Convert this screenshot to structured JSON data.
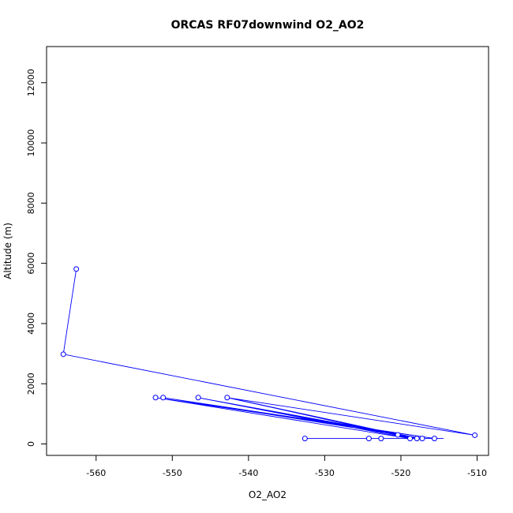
{
  "chart_data": {
    "type": "line",
    "title": "ORCAS RF07downwind O2_AO2",
    "xlabel": "O2_AO2",
    "ylabel": "Altitude (m)",
    "xlim": [
      -566.5,
      -508.5
    ],
    "ylim": [
      -380,
      13200
    ],
    "x_ticks": [
      -560,
      -550,
      -540,
      -530,
      -520,
      -510
    ],
    "y_ticks": [
      0,
      2000,
      4000,
      6000,
      8000,
      10000,
      12000
    ],
    "grid": false,
    "legend": "none",
    "series_color": "#0000ff",
    "points": [
      {
        "x": -562.6,
        "y": 5810
      },
      {
        "x": -564.3,
        "y": 2980
      },
      {
        "x": -510.3,
        "y": 290
      },
      {
        "x": -542.8,
        "y": 1540
      },
      {
        "x": -520.4,
        "y": 300
      },
      {
        "x": -546.6,
        "y": 1540
      },
      {
        "x": -518.8,
        "y": 180
      },
      {
        "x": -552.2,
        "y": 1540
      },
      {
        "x": -515.6,
        "y": 180
      },
      {
        "x": -551.2,
        "y": 1540
      },
      {
        "x": -517.2,
        "y": 180
      },
      {
        "x": -545.8,
        "y": 1500
      },
      {
        "x": -517.9,
        "y": 180
      },
      {
        "x": -542.0,
        "y": 1500
      },
      {
        "x": -518.6,
        "y": 180
      },
      {
        "x": -522.6,
        "y": 180
      },
      {
        "x": -524.2,
        "y": 180
      },
      {
        "x": -532.6,
        "y": 180
      },
      {
        "x": -514.4,
        "y": 180
      }
    ],
    "markers": [
      {
        "x": -562.6,
        "y": 5810
      },
      {
        "x": -564.3,
        "y": 2980
      },
      {
        "x": -510.3,
        "y": 290
      },
      {
        "x": -542.8,
        "y": 1540
      },
      {
        "x": -520.4,
        "y": 300
      },
      {
        "x": -546.6,
        "y": 1540
      },
      {
        "x": -518.8,
        "y": 180
      },
      {
        "x": -552.2,
        "y": 1540
      },
      {
        "x": -515.6,
        "y": 180
      },
      {
        "x": -551.2,
        "y": 1540
      },
      {
        "x": -517.2,
        "y": 180
      },
      {
        "x": -517.9,
        "y": 180
      },
      {
        "x": -522.6,
        "y": 180
      },
      {
        "x": -524.2,
        "y": 180
      },
      {
        "x": -532.6,
        "y": 180
      }
    ]
  }
}
